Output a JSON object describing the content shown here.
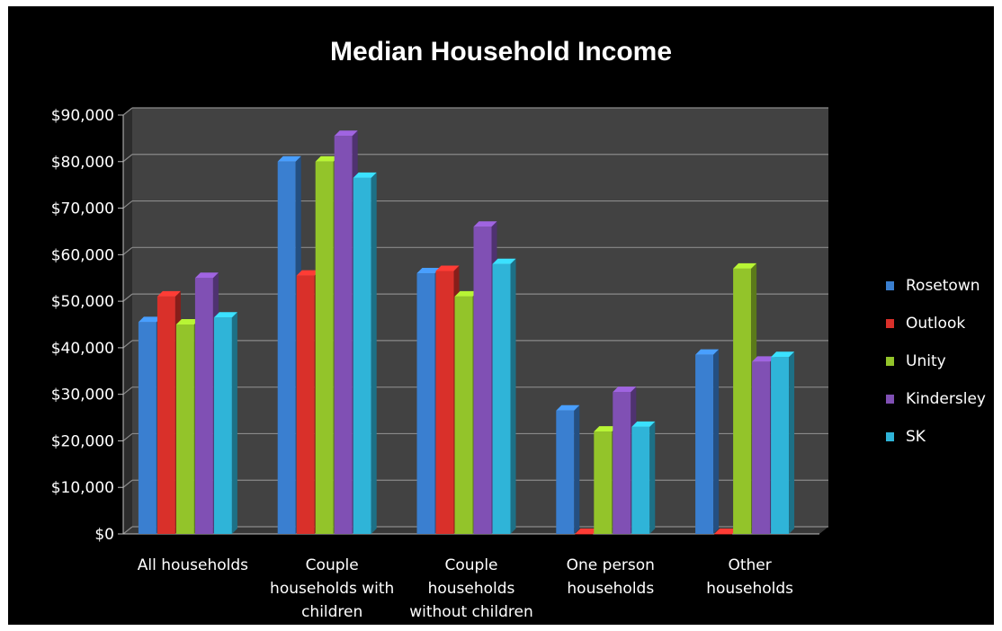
{
  "chart_data": {
    "type": "bar",
    "title": "Median Household Income",
    "categories": [
      [
        "All households"
      ],
      [
        "Couple",
        "households with",
        "children"
      ],
      [
        "Couple",
        "households",
        "without children"
      ],
      [
        "One person",
        "households"
      ],
      [
        "Other",
        "households"
      ]
    ],
    "y_ticks": [
      "$0",
      "$10,000",
      "$20,000",
      "$30,000",
      "$40,000",
      "$50,000",
      "$60,000",
      "$70,000",
      "$80,000",
      "$90,000"
    ],
    "ylim": [
      0,
      90000
    ],
    "grid": true,
    "legend_position": "right",
    "series": [
      {
        "name": "Rosetown",
        "color": "#3a7fd0",
        "values": [
          45500,
          80000,
          56000,
          26500,
          38500
        ]
      },
      {
        "name": "Outlook",
        "color": "#d9302a",
        "values": [
          51000,
          55500,
          56500,
          0,
          0
        ]
      },
      {
        "name": "Unity",
        "color": "#93c42a",
        "values": [
          45000,
          80000,
          51000,
          22000,
          57000
        ]
      },
      {
        "name": "Kindersley",
        "color": "#8050b4",
        "values": [
          55000,
          85500,
          66000,
          30500,
          37000
        ]
      },
      {
        "name": "SK",
        "color": "#2fb4d8",
        "values": [
          46500,
          76500,
          58000,
          23000,
          38000
        ]
      }
    ]
  }
}
